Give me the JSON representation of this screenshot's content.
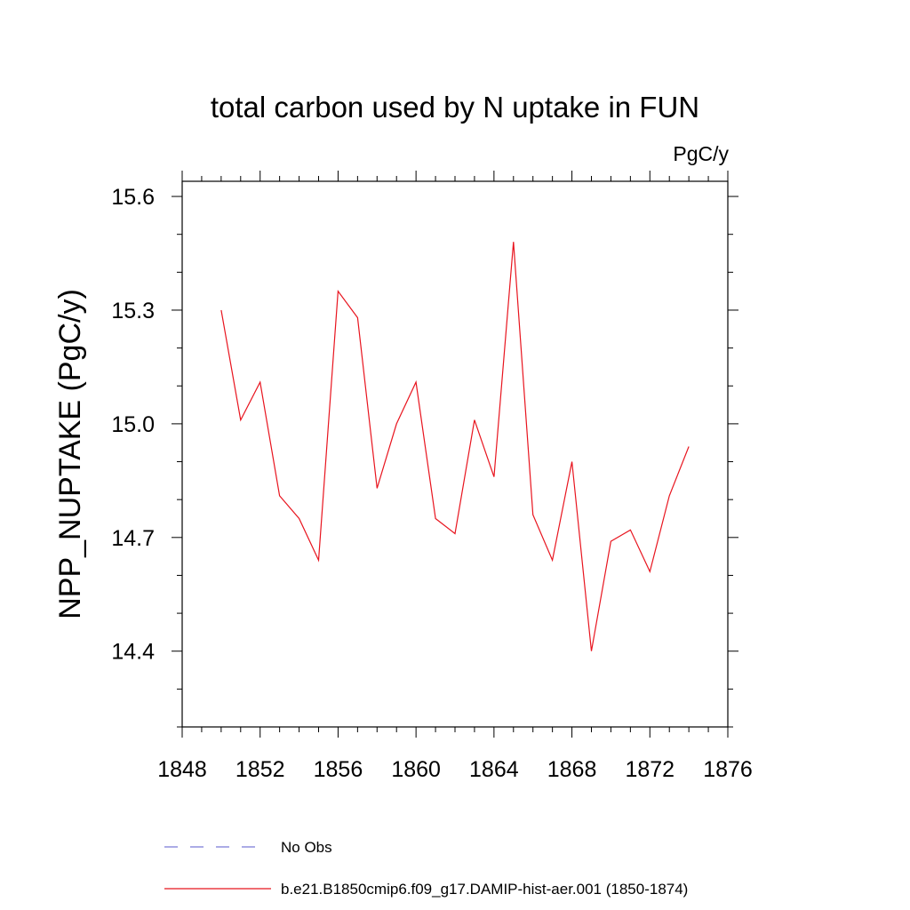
{
  "chart_data": {
    "type": "line",
    "title": "total carbon used by N uptake in FUN",
    "units_label": "PgC/y",
    "ylabel": "NPP_NUPTAKE  (PgC/y)",
    "xlabel": "",
    "xlim": [
      1848,
      1876
    ],
    "ylim": [
      14.2,
      15.64
    ],
    "x_ticks": [
      1848,
      1852,
      1856,
      1860,
      1864,
      1868,
      1872,
      1876
    ],
    "y_ticks": [
      "14.4",
      "14.7",
      "15.0",
      "15.3",
      "15.6"
    ],
    "grid": false,
    "series": [
      {
        "name": "b.e21.B1850cmip6.f09_g17.DAMIP-hist-aer.001 (1850-1874)",
        "color": "#e8141e",
        "x": [
          1850,
          1851,
          1852,
          1853,
          1854,
          1855,
          1856,
          1857,
          1858,
          1859,
          1860,
          1861,
          1862,
          1863,
          1864,
          1865,
          1866,
          1867,
          1868,
          1869,
          1870,
          1871,
          1872,
          1873,
          1874
        ],
        "y": [
          15.3,
          15.01,
          15.11,
          14.81,
          14.75,
          14.64,
          15.35,
          15.28,
          14.83,
          15.0,
          15.11,
          14.75,
          14.71,
          15.01,
          14.86,
          15.48,
          14.76,
          14.64,
          14.9,
          14.4,
          14.69,
          14.72,
          14.61,
          14.81,
          14.94
        ]
      }
    ],
    "legend": {
      "position": "bottom",
      "entries": [
        {
          "label": "No Obs",
          "style": "dashed",
          "color": "#7b7bd8"
        },
        {
          "label": "b.e21.B1850cmip6.f09_g17.DAMIP-hist-aer.001 (1850-1874)",
          "style": "solid",
          "color": "#e8141e"
        }
      ]
    }
  }
}
